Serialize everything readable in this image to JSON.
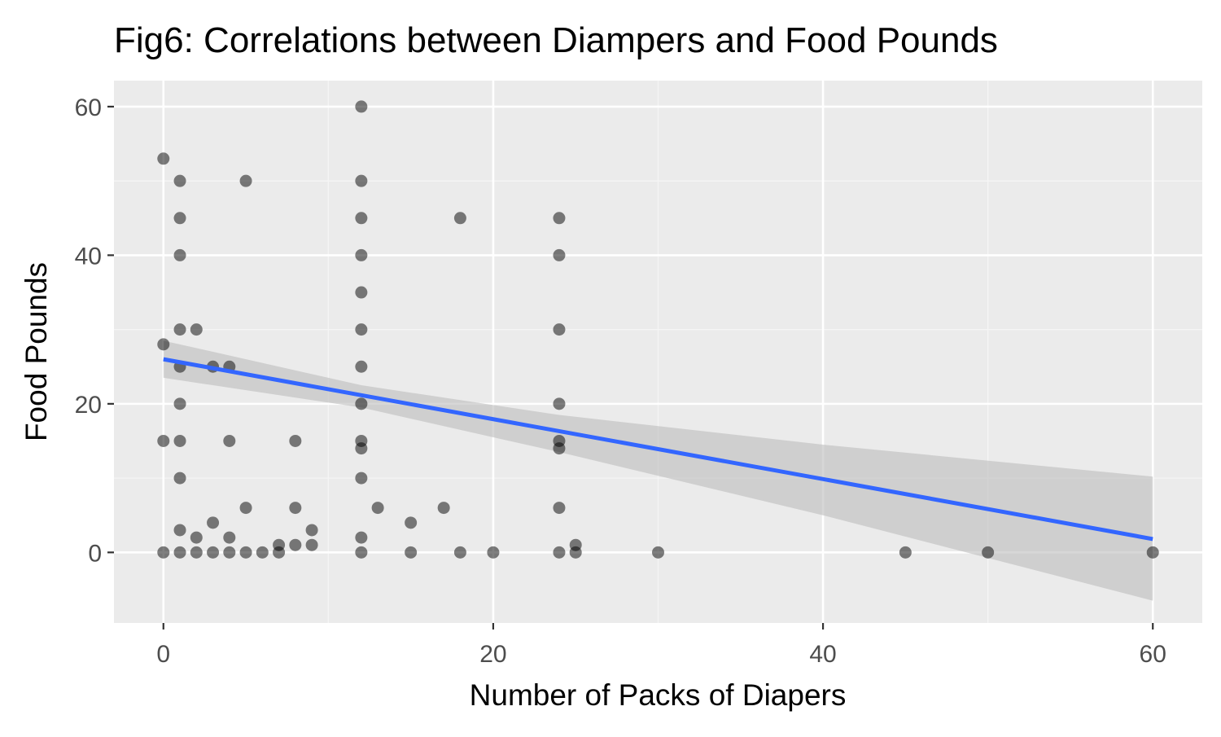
{
  "chart_data": {
    "type": "scatter",
    "title": "Fig6: Correlations between Diampers and Food Pounds",
    "xlabel": "Number of Packs of Diapers",
    "ylabel": "Food Pounds",
    "xlim": [
      -3,
      63
    ],
    "ylim": [
      -9.5,
      63.5
    ],
    "x_ticks": [
      0,
      20,
      40,
      60
    ],
    "y_ticks": [
      0,
      20,
      40,
      60
    ],
    "grid": true,
    "legend": "none",
    "colors": {
      "panel_background": "#ebebeb",
      "grid_major": "#ffffff",
      "grid_minor": "#f5f5f5",
      "point": "#000000",
      "trend_line": "#3366ff",
      "confidence_band": "#bdbdbd"
    },
    "points": [
      {
        "x": 0,
        "y": 53
      },
      {
        "x": 0,
        "y": 28
      },
      {
        "x": 0,
        "y": 15
      },
      {
        "x": 0,
        "y": 0
      },
      {
        "x": 1,
        "y": 50
      },
      {
        "x": 1,
        "y": 45
      },
      {
        "x": 1,
        "y": 40
      },
      {
        "x": 1,
        "y": 30
      },
      {
        "x": 1,
        "y": 25
      },
      {
        "x": 1,
        "y": 20
      },
      {
        "x": 1,
        "y": 15
      },
      {
        "x": 1,
        "y": 10
      },
      {
        "x": 1,
        "y": 3
      },
      {
        "x": 1,
        "y": 0
      },
      {
        "x": 2,
        "y": 30
      },
      {
        "x": 2,
        "y": 2
      },
      {
        "x": 2,
        "y": 0
      },
      {
        "x": 3,
        "y": 25
      },
      {
        "x": 3,
        "y": 4
      },
      {
        "x": 3,
        "y": 0
      },
      {
        "x": 4,
        "y": 25
      },
      {
        "x": 4,
        "y": 15
      },
      {
        "x": 4,
        "y": 2
      },
      {
        "x": 4,
        "y": 0
      },
      {
        "x": 5,
        "y": 50
      },
      {
        "x": 5,
        "y": 6
      },
      {
        "x": 5,
        "y": 0
      },
      {
        "x": 6,
        "y": 0
      },
      {
        "x": 7,
        "y": 1
      },
      {
        "x": 7,
        "y": 0
      },
      {
        "x": 8,
        "y": 15
      },
      {
        "x": 8,
        "y": 6
      },
      {
        "x": 8,
        "y": 1
      },
      {
        "x": 9,
        "y": 3
      },
      {
        "x": 9,
        "y": 1
      },
      {
        "x": 12,
        "y": 60
      },
      {
        "x": 12,
        "y": 50
      },
      {
        "x": 12,
        "y": 45
      },
      {
        "x": 12,
        "y": 40
      },
      {
        "x": 12,
        "y": 35
      },
      {
        "x": 12,
        "y": 30
      },
      {
        "x": 12,
        "y": 25
      },
      {
        "x": 12,
        "y": 20
      },
      {
        "x": 12,
        "y": 15
      },
      {
        "x": 12,
        "y": 14
      },
      {
        "x": 12,
        "y": 10
      },
      {
        "x": 12,
        "y": 2
      },
      {
        "x": 12,
        "y": 0
      },
      {
        "x": 13,
        "y": 6
      },
      {
        "x": 15,
        "y": 4
      },
      {
        "x": 15,
        "y": 0
      },
      {
        "x": 17,
        "y": 6
      },
      {
        "x": 18,
        "y": 45
      },
      {
        "x": 18,
        "y": 0
      },
      {
        "x": 20,
        "y": 0
      },
      {
        "x": 24,
        "y": 45
      },
      {
        "x": 24,
        "y": 40
      },
      {
        "x": 24,
        "y": 30
      },
      {
        "x": 24,
        "y": 20
      },
      {
        "x": 24,
        "y": 15
      },
      {
        "x": 24,
        "y": 14
      },
      {
        "x": 24,
        "y": 6
      },
      {
        "x": 24,
        "y": 0
      },
      {
        "x": 25,
        "y": 1
      },
      {
        "x": 25,
        "y": 0
      },
      {
        "x": 30,
        "y": 0
      },
      {
        "x": 45,
        "y": 0
      },
      {
        "x": 50,
        "y": 0
      },
      {
        "x": 60,
        "y": 0
      }
    ],
    "trend_line": {
      "x": [
        0,
        60
      ],
      "y": [
        26,
        1.8
      ]
    },
    "confidence_band": {
      "x": [
        0,
        12,
        24,
        40,
        60
      ],
      "lower": [
        23.5,
        19.5,
        13.5,
        5,
        -6.5
      ],
      "upper": [
        28.5,
        22.5,
        18.5,
        14.5,
        10.2
      ]
    }
  }
}
